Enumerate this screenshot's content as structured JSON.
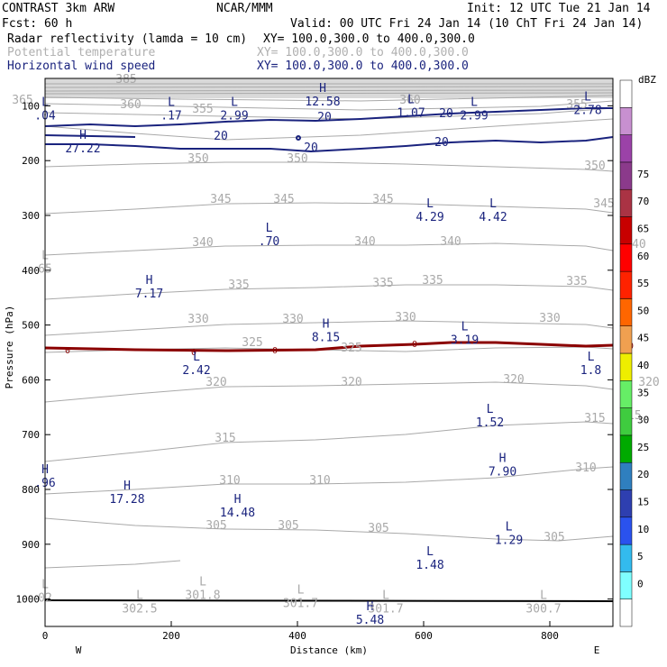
{
  "header": {
    "line1_left": "CONTRAST  3km ARW",
    "line1_mid": "NCAR/MMM",
    "line1_right": "Init: 12 UTC Tue 21 Jan 14",
    "line2_left": "Fcst:   60 h",
    "line2_right": "Valid: 00 UTC Fri 24 Jan 14 (10 ChT Fri 24 Jan 14)",
    "fields": [
      {
        "name": "Radar reflectivity (lamda = 10 cm)",
        "xy": "XY= 100.0,300.0 to 400.0,300.0",
        "color": "#000000"
      },
      {
        "name": "Potential temperature",
        "xy": "XY= 100.0,300.0 to 400.0,300.0",
        "color": "#b0b0b0"
      },
      {
        "name": "Horizontal wind speed",
        "xy": "XY= 100.0,300.0 to 400.0,300.0",
        "color": "#1a237e"
      }
    ]
  },
  "chart_data": {
    "type": "cross-section",
    "xlabel": "Distance (km)",
    "ylabel": "Pressure (hPa)",
    "xlim": [
      0,
      900
    ],
    "ylim": [
      1050,
      50
    ],
    "xticks": [
      0,
      200,
      400,
      600,
      800
    ],
    "yticks": [
      100,
      200,
      300,
      400,
      500,
      600,
      700,
      800,
      900,
      1000
    ],
    "x_end_labels": {
      "left": "W",
      "right": "E"
    },
    "colorbar": {
      "title": "dBZ",
      "levels": [
        0,
        5,
        10,
        15,
        20,
        25,
        30,
        35,
        40,
        45,
        50,
        55,
        60,
        65,
        70,
        75
      ],
      "colors": [
        "#ffffff",
        "#7fffff",
        "#33bbee",
        "#2a52ee",
        "#2e3fb0",
        "#2f7fbf",
        "#00aa00",
        "#3fcc3f",
        "#66ee66",
        "#eeee00",
        "#f0a050",
        "#ff6600",
        "#ff2200",
        "#ff0000",
        "#c80000",
        "#aa3344",
        "#8b3a8b",
        "#9b42a8",
        "#c890d0",
        "#ffffff"
      ]
    },
    "theta_contours": [
      {
        "level": 385,
        "label_positions": [
          [
            140,
            92
          ]
        ]
      },
      {
        "level": 365,
        "label_positions": [
          [
            25,
            115
          ]
        ]
      },
      {
        "level": 360,
        "label_positions": [
          [
            145,
            120
          ],
          [
            455,
            115
          ]
        ]
      },
      {
        "level": 355,
        "label_positions": [
          [
            225,
            125
          ],
          [
            640,
            120
          ]
        ]
      },
      {
        "level": 350,
        "label_positions": [
          [
            220,
            180
          ],
          [
            330,
            180
          ],
          [
            660,
            188
          ]
        ]
      },
      {
        "level": 345,
        "label_positions": [
          [
            245,
            225
          ],
          [
            315,
            225
          ],
          [
            425,
            225
          ],
          [
            670,
            230
          ]
        ]
      },
      {
        "level": 340,
        "label_positions": [
          [
            225,
            273
          ],
          [
            405,
            272
          ],
          [
            500,
            272
          ],
          [
            705,
            275
          ]
        ]
      },
      {
        "level": 335,
        "label_positions": [
          [
            265,
            320
          ],
          [
            425,
            318
          ],
          [
            480,
            315
          ],
          [
            640,
            316
          ]
        ]
      },
      {
        "level": 330,
        "label_positions": [
          [
            220,
            358
          ],
          [
            325,
            358
          ],
          [
            450,
            356
          ],
          [
            610,
            357
          ]
        ]
      },
      {
        "level": 325,
        "label_positions": [
          [
            280,
            384
          ],
          [
            390,
            390
          ]
        ]
      },
      {
        "level": 320,
        "label_positions": [
          [
            240,
            428
          ],
          [
            390,
            428
          ],
          [
            570,
            425
          ],
          [
            720,
            428
          ]
        ]
      },
      {
        "level": 315,
        "label_positions": [
          [
            250,
            490
          ],
          [
            660,
            468
          ],
          [
            700,
            465
          ]
        ]
      },
      {
        "level": 310,
        "label_positions": [
          [
            255,
            537
          ],
          [
            355,
            537
          ],
          [
            650,
            523
          ]
        ]
      },
      {
        "level": 305,
        "label_positions": [
          [
            240,
            587
          ],
          [
            320,
            587
          ],
          [
            420,
            590
          ],
          [
            615,
            600
          ]
        ]
      }
    ],
    "wind_contours": [
      {
        "level": 20,
        "label_positions": [
          [
            245,
            155
          ],
          [
            360,
            134
          ],
          [
            495,
            130
          ],
          [
            345,
            168
          ],
          [
            490,
            162
          ],
          [
            815,
            155
          ]
        ]
      }
    ],
    "reflectivity_contours": [
      {
        "level": 0,
        "label_positions": [
          [
            75,
            388
          ],
          [
            215,
            390
          ],
          [
            305,
            388
          ],
          [
            460,
            381
          ],
          [
            700,
            383
          ]
        ]
      }
    ],
    "wind_extrema": [
      {
        "type": "L",
        "value": ".04",
        "x": 0,
        "y": 100
      },
      {
        "type": "L",
        "value": ".17",
        "x": 200,
        "y": 100
      },
      {
        "type": "L",
        "value": "2.99",
        "x": 300,
        "y": 100
      },
      {
        "type": "H",
        "value": "12.58",
        "x": 440,
        "y": 75
      },
      {
        "type": "L",
        "value": "1.07",
        "x": 580,
        "y": 95
      },
      {
        "type": "L",
        "value": "2.99",
        "x": 680,
        "y": 100
      },
      {
        "type": "L",
        "value": "2.78",
        "x": 860,
        "y": 90
      },
      {
        "type": "H",
        "value": "27.22",
        "x": 60,
        "y": 160
      },
      {
        "type": "L",
        "value": "4.29",
        "x": 610,
        "y": 285
      },
      {
        "type": "L",
        "value": "4.42",
        "x": 710,
        "y": 285
      },
      {
        "type": "L",
        "value": ".70",
        "x": 355,
        "y": 330
      },
      {
        "type": "H",
        "value": "7.17",
        "x": 165,
        "y": 425
      },
      {
        "type": "H",
        "value": "8.15",
        "x": 445,
        "y": 505
      },
      {
        "type": "L",
        "value": "3.19",
        "x": 665,
        "y": 510
      },
      {
        "type": "L",
        "value": "2.42",
        "x": 240,
        "y": 565
      },
      {
        "type": "L",
        "value": "1.8",
        "x": 865,
        "y": 565
      },
      {
        "type": "L",
        "value": "1.52",
        "x": 705,
        "y": 660
      },
      {
        "type": "H",
        "value": "7.90",
        "x": 725,
        "y": 750
      },
      {
        "type": "H",
        "value": ".96",
        "x": 0,
        "y": 770
      },
      {
        "type": "H",
        "value": "17.28",
        "x": 130,
        "y": 800
      },
      {
        "type": "H",
        "value": "14.48",
        "x": 305,
        "y": 825
      },
      {
        "type": "L",
        "value": "1.29",
        "x": 735,
        "y": 875
      },
      {
        "type": "L",
        "value": "1.48",
        "x": 610,
        "y": 920
      },
      {
        "type": "H",
        "value": "5.48",
        "x": 515,
        "y": 1020
      }
    ],
    "theta_extrema": [
      {
        "type": "L",
        "value": "301.8",
        "x": 250,
        "y": 975
      },
      {
        "type": "L",
        "value": "302.5",
        "x": 150,
        "y": 1000
      },
      {
        "type": "L",
        "value": "301.7",
        "x": 405,
        "y": 990
      },
      {
        "type": "L",
        "value": "301.7",
        "x": 540,
        "y": 1000
      },
      {
        "type": "L",
        "value": "300.7",
        "x": 790,
        "y": 1000
      },
      {
        "type": "L",
        "value": "65",
        "x": 0,
        "y": 380
      },
      {
        "type": "L",
        "value": "02",
        "x": 0,
        "y": 980
      }
    ]
  }
}
